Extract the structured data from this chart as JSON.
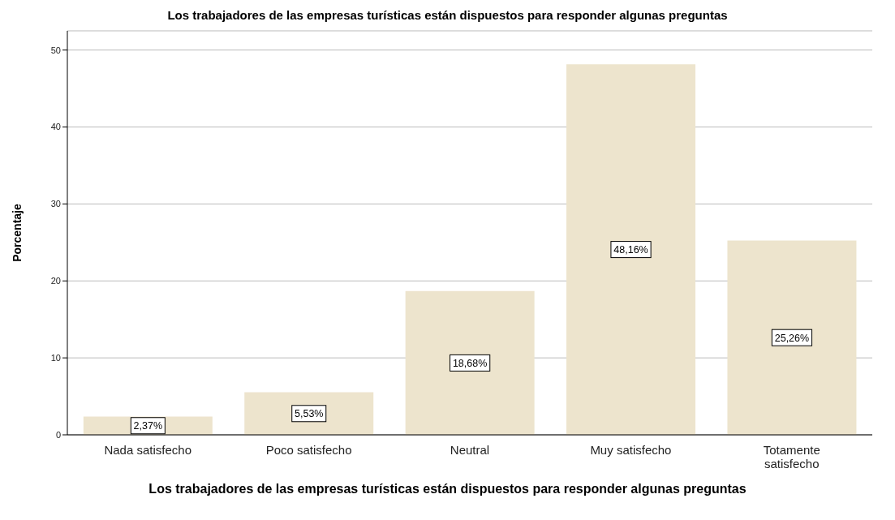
{
  "chart_data": {
    "type": "bar",
    "title": "Los trabajadores de las empresas turísticas están dispuestos para responder algunas preguntas",
    "xlabel": "Los trabajadores de las empresas turísticas están dispuestos para responder algunas preguntas",
    "ylabel": "Porcentaje",
    "categories": [
      "Nada satisfecho",
      "Poco satisfecho",
      "Neutral",
      "Muy satisfecho",
      "Totamente satisfecho"
    ],
    "values": [
      2.37,
      5.53,
      18.68,
      48.16,
      25.26
    ],
    "value_labels": [
      "2,37%",
      "5,53%",
      "18,68%",
      "48,16%",
      "25,26%"
    ],
    "color": "#ede4cd",
    "ylim": [
      0,
      52.5
    ],
    "yticks": [
      0,
      10,
      20,
      30,
      40,
      50
    ],
    "grid": "y"
  }
}
